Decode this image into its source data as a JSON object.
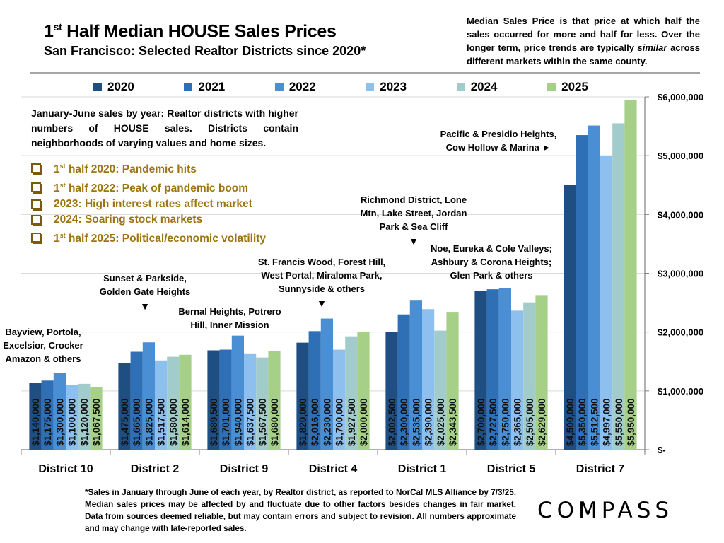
{
  "header": {
    "title_prefix": "1",
    "title_sup": "st",
    "title_rest": " Half Median HOUSE Sales Prices",
    "subtitle": "San Francisco: Selected Realtor Districts since 2020*",
    "definition_part1": "Median Sales Price is that price at which half the sales occurred for more and half for less. Over the longer term, price trends are typically ",
    "definition_italic": "similar",
    "definition_part2": " across different markets within the same county."
  },
  "intro": "January-June sales by year: Realtor districts with higher numbers of HOUSE sales. Districts contain neighborhoods of varying values and home sizes.",
  "events": [
    {
      "pre": "1",
      "sup": "st",
      "text": " half 2020: Pandemic hits"
    },
    {
      "pre": "1",
      "sup": "st",
      "text": " half 2022:  Peak of pandemic boom"
    },
    {
      "pre": "",
      "sup": "",
      "text": "2023:  High interest rates affect market"
    },
    {
      "pre": "",
      "sup": "",
      "text": "2024:  Soaring stock markets"
    },
    {
      "pre": "1",
      "sup": "st",
      "text": " half 2025:  Political/economic volatility"
    }
  ],
  "annotations": [
    {
      "lines": [
        "Bayview, Portola,",
        "Excelsior, Crocker",
        "Amazon & others"
      ],
      "arrow": ""
    },
    {
      "lines": [
        "Sunset & Parkside,",
        "Golden Gate Heights"
      ],
      "arrow": "▼"
    },
    {
      "lines": [
        "Bernal Heights, Potrero",
        "Hill, Inner Mission"
      ],
      "arrow": ""
    },
    {
      "lines": [
        "St. Francis Wood, Forest Hill,",
        "West Portal, Miraloma Park,",
        "Sunnyside & others"
      ],
      "arrow": "▼"
    },
    {
      "lines": [
        "Richmond District, Lone",
        "Mtn, Lake Street, Jordan",
        "Park & Sea Cliff"
      ],
      "arrow": "▼"
    },
    {
      "lines": [
        "Noe, Eureka & Cole Valleys;",
        "Ashbury & Corona Heights;",
        "Glen Park & others"
      ],
      "arrow": ""
    },
    {
      "lines": [
        "Pacific & Presidio Heights,",
        "Cow Hollow & Marina ►"
      ],
      "arrow": ""
    }
  ],
  "footnote": {
    "part1": "*Sales in January through June of each year, by Realtor district, as reported to NorCal MLS Alliance by 7/3/25. ",
    "underline1": "Median sales prices may be affected by and fluctuate due to other factors besides changes in fair market",
    "part2": ". Data from sources deemed reliable, but may contain errors and subject to revision. ",
    "underline2": "All numbers approximate and may change with late-reported sales",
    "part3": "."
  },
  "logo": "COMPASS",
  "chart_data": {
    "type": "bar",
    "title": "1st Half Median HOUSE Sales Prices",
    "subtitle": "San Francisco: Selected Realtor Districts since 2020*",
    "categories": [
      "District 10",
      "District 2",
      "District 9",
      "District 4",
      "District 1",
      "District 5",
      "District 7"
    ],
    "series": [
      {
        "name": "2020",
        "color": "#1f4e83",
        "values": [
          1140000,
          1475000,
          1689500,
          1820000,
          2002500,
          2700000,
          4500000
        ]
      },
      {
        "name": "2021",
        "color": "#2e6fb5",
        "values": [
          1175000,
          1665000,
          1701000,
          2016000,
          2300000,
          2727500,
          5350000
        ]
      },
      {
        "name": "2022",
        "color": "#4a8fd4",
        "values": [
          1300000,
          1825000,
          1940000,
          2230000,
          2535000,
          2750000,
          5512500
        ]
      },
      {
        "name": "2023",
        "color": "#8ec0ef",
        "values": [
          1100000,
          1517500,
          1637500,
          1700000,
          2390000,
          2365000,
          4997000
        ]
      },
      {
        "name": "2024",
        "color": "#a2cbcb",
        "values": [
          1120000,
          1580000,
          1567500,
          1927500,
          2025000,
          2505000,
          5550000
        ]
      },
      {
        "name": "2025",
        "color": "#a6cf88",
        "values": [
          1067500,
          1614000,
          1680000,
          2000000,
          2343500,
          2629000,
          5950000
        ]
      }
    ],
    "data_labels": [
      [
        "$1,140,000",
        "$1,475,000",
        "$1,689,500",
        "$1,820,000",
        "$2,002,500",
        "$2,700,000",
        "$4,500,000"
      ],
      [
        "$1,175,000",
        "$1,665,000",
        "$1,701,000",
        "$2,016,000",
        "$2,300,000",
        "$2,727,500",
        "$5,350,000"
      ],
      [
        "$1,300,000",
        "$1,825,000",
        "$1,940,000",
        "$2,230,000",
        "$2,535,000",
        "$2,750,000",
        "$5,512,500"
      ],
      [
        "$1,100,000",
        "$1,517,500",
        "$1,637,500",
        "$1,700,000",
        "$2,390,000",
        "$2,365,000",
        "$4,997,000"
      ],
      [
        "$1,120,000",
        "$1,580,000",
        "$1,567,500",
        "$1,927,500",
        "$2,025,000",
        "$2,505,000",
        "$5,550,000"
      ],
      [
        "$1,067,500",
        "$1,614,000",
        "$1,680,000",
        "$2,000,000",
        "$2,343,500",
        "$2,629,000",
        "$5,950,000"
      ]
    ],
    "ylim": [
      0,
      6000000
    ],
    "yticks": [
      0,
      1000000,
      2000000,
      3000000,
      4000000,
      5000000,
      6000000
    ],
    "ytick_labels": [
      "$-",
      "$1,000,000",
      "$2,000,000",
      "$3,000,000",
      "$4,000,000",
      "$5,000,000",
      "$6,000,000"
    ],
    "yaxis_side": "right",
    "grid": true,
    "legend": "top",
    "xlabel": "",
    "ylabel": ""
  }
}
